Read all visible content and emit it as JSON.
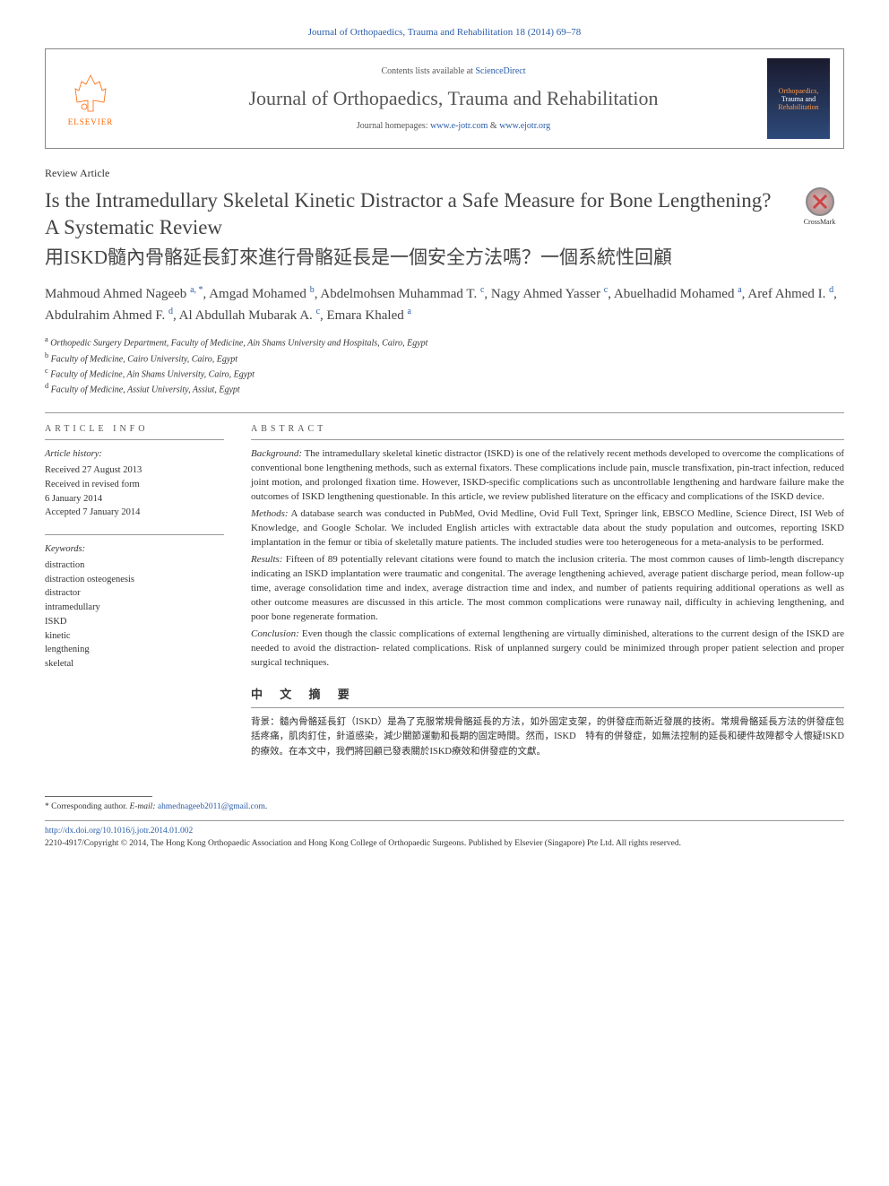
{
  "header": {
    "citation": "Journal of Orthopaedics, Trauma and Rehabilitation 18 (2014) 69–78",
    "contents_prefix": "Contents lists available at ",
    "contents_link": "ScienceDirect",
    "journal_name": "Journal of Orthopaedics, Trauma and Rehabilitation",
    "homepage_prefix": "Journal homepages: ",
    "homepage_link1": "www.e-jotr.com",
    "homepage_sep": " & ",
    "homepage_link2": "www.ejotr.org",
    "elsevier_label": "ELSEVIER",
    "cover_line1": "Orthopaedics,",
    "cover_line2": "Trauma and",
    "cover_line3": "Rehabilitation"
  },
  "article": {
    "type": "Review Article",
    "title_en": "Is the Intramedullary Skeletal Kinetic Distractor a Safe Measure for Bone Lengthening? A Systematic Review",
    "title_cn": "用ISKD髓內骨骼延長釘來進行骨骼延長是一個安全方法嗎？一個系統性回顧",
    "crossmark_label": "CrossMark"
  },
  "authors": [
    {
      "name": "Mahmoud Ahmed Nageeb",
      "sup": "a, *"
    },
    {
      "name": "Amgad Mohamed",
      "sup": "b"
    },
    {
      "name": "Abdelmohsen Muhammad T.",
      "sup": "c"
    },
    {
      "name": "Nagy Ahmed Yasser",
      "sup": "c"
    },
    {
      "name": "Abuelhadid Mohamed",
      "sup": "a"
    },
    {
      "name": "Aref Ahmed I.",
      "sup": "d"
    },
    {
      "name": "Abdulrahim Ahmed F.",
      "sup": "d"
    },
    {
      "name": "Al Abdullah Mubarak A.",
      "sup": "c"
    },
    {
      "name": "Emara Khaled",
      "sup": "a"
    }
  ],
  "affiliations": [
    {
      "sup": "a",
      "text": "Orthopedic Surgery Department, Faculty of Medicine, Ain Shams University and Hospitals, Cairo, Egypt"
    },
    {
      "sup": "b",
      "text": "Faculty of Medicine, Cairo University, Cairo, Egypt"
    },
    {
      "sup": "c",
      "text": "Faculty of Medicine, Ain Shams University, Cairo, Egypt"
    },
    {
      "sup": "d",
      "text": "Faculty of Medicine, Assiut University, Assiut, Egypt"
    }
  ],
  "info": {
    "section_label": "ARTICLE INFO",
    "history_heading": "Article history:",
    "history_lines": [
      "Received 27 August 2013",
      "Received in revised form",
      "6 January 2014",
      "Accepted 7 January 2014"
    ],
    "keywords_heading": "Keywords:",
    "keywords": [
      "distraction",
      "distraction osteogenesis",
      "distractor",
      "intramedullary",
      "ISKD",
      "kinetic",
      "lengthening",
      "skeletal"
    ]
  },
  "abstract": {
    "section_label": "ABSTRACT",
    "paragraphs": [
      {
        "label": "Background:",
        "text": " The intramedullary skeletal kinetic distractor (ISKD) is one of the relatively recent methods developed to overcome the complications of conventional bone lengthening methods, such as external fixators. These complications include pain, muscle transfixation, pin-tract infection, reduced joint motion, and prolonged fixation time. However, ISKD-specific complications such as uncontrollable lengthening and hardware failure make the outcomes of ISKD lengthening questionable. In this article, we review published literature on the efficacy and complications of the ISKD device."
      },
      {
        "label": "Methods:",
        "text": " A database search was conducted in PubMed, Ovid Medline, Ovid Full Text, Springer link, EBSCO Medline, Science Direct, ISI Web of Knowledge, and Google Scholar. We included English articles with extractable data about the study population and outcomes, reporting ISKD implantation in the femur or tibia of skeletally mature patients. The included studies were too heterogeneous for a meta-analysis to be performed."
      },
      {
        "label": "Results:",
        "text": " Fifteen of 89 potentially relevant citations were found to match the inclusion criteria. The most common causes of limb-length discrepancy indicating an ISKD implantation were traumatic and congenital. The average lengthening achieved, average patient discharge period, mean follow-up time, average consolidation time and index, average distraction time and index, and number of patients requiring additional operations as well as other outcome measures are discussed in this article. The most common complications were runaway nail, difficulty in achieving lengthening, and poor bone regenerate formation."
      },
      {
        "label": "Conclusion:",
        "text": " Even though the classic complications of external lengthening are virtually diminished, alterations to the current design of the ISKD are needed to avoid the distraction- related complications. Risk of unplanned surgery could be minimized through proper patient selection and proper surgical techniques."
      }
    ],
    "cn_label": "中 文 摘 要",
    "cn_text": "背景：髓內骨骼延長釘（ISKD）是為了克服常規骨骼延長的方法，如外固定支架，的併發症而新近發展的技術。常規骨骼延長方法的併發症包括疼痛，肌肉釘住，針道感染，減少關節運動和長期的固定時間。然而，ISKD　特有的併發症，如無法控制的延長和硬件故障都令人懷疑ISKD的療效。在本文中，我們將回顧已發表關於ISKD療效和併發症的文獻。"
  },
  "footer": {
    "corr_prefix": "* Corresponding author. ",
    "email_label": "E-mail: ",
    "email": "ahmednageeb2011@gmail.com",
    "email_suffix": ".",
    "doi": "http://dx.doi.org/10.1016/j.jotr.2014.01.002",
    "copyright": "2210-4917/Copyright © 2014, The Hong Kong Orthopaedic Association and Hong Kong College of Orthopaedic Surgeons. Published by Elsevier (Singapore) Pte Ltd. All rights reserved."
  },
  "colors": {
    "link": "#2a5ca8",
    "elsevier_orange": "#ff6600",
    "text": "#333333",
    "heading": "#444444"
  }
}
